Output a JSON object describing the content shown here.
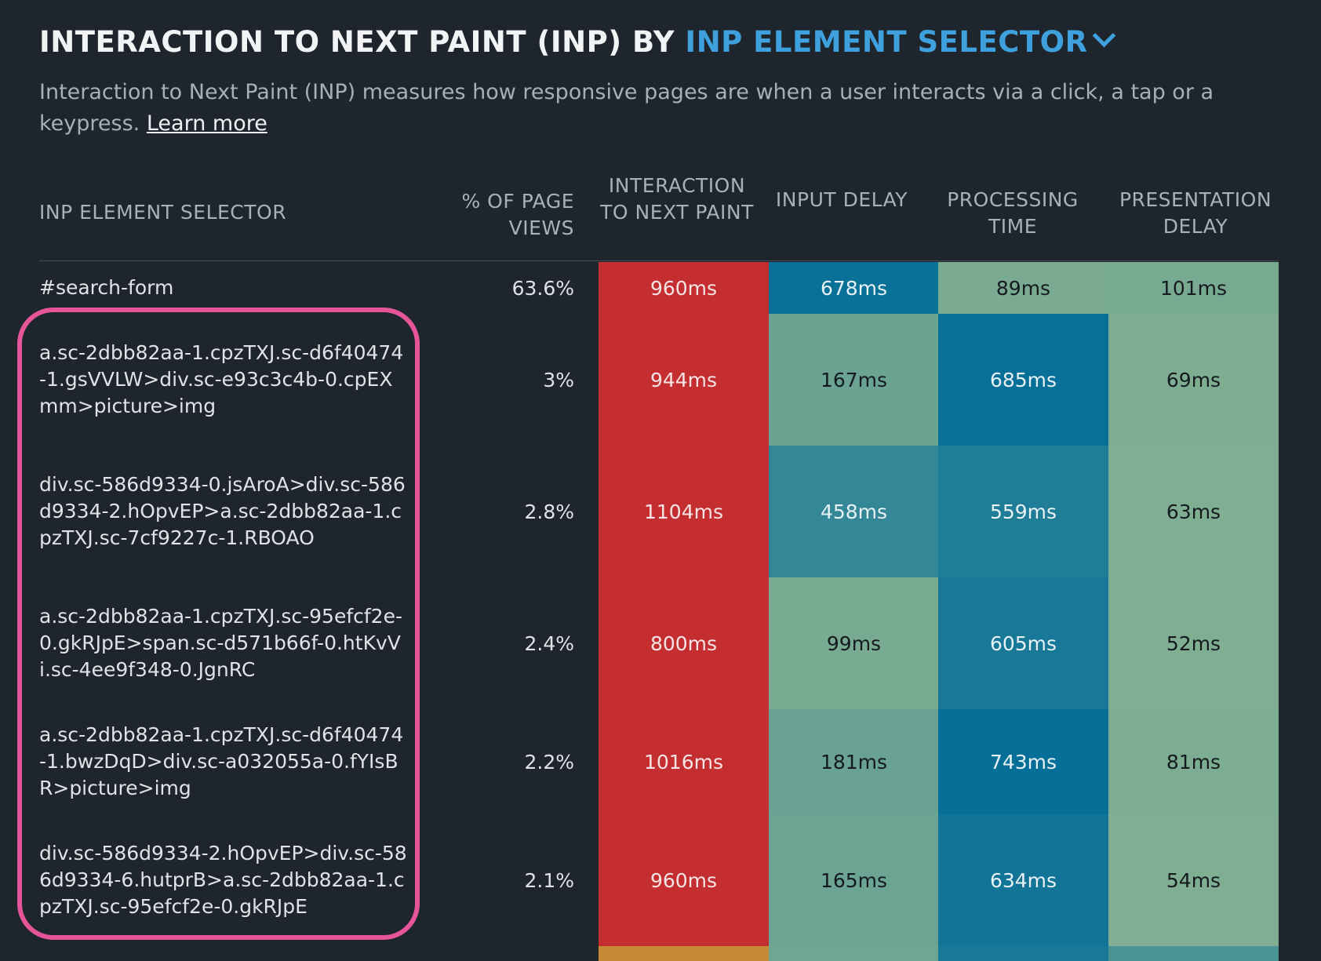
{
  "title": {
    "prefix": "INTERACTION TO NEXT PAINT (INP) BY",
    "selector": "INP ELEMENT SELECTOR"
  },
  "description": {
    "text": "Interaction to Next Paint (INP) measures how responsive pages are when a user interacts via a click, a tap or a keypress.",
    "link": "Learn more"
  },
  "columns": {
    "selector": "INP ELEMENT SELECTOR",
    "page_views": "% OF PAGE VIEWS",
    "inp": "INTERACTION TO NEXT PAINT",
    "input_delay": "INPUT DELAY",
    "processing_time": "PROCESSING TIME",
    "presentation_delay": "PRESENTATION DELAY"
  },
  "rows": [
    {
      "selector": "#search-form",
      "page_views": "63.6%",
      "inp": "960ms",
      "input_delay": "678ms",
      "processing_time": "89ms",
      "presentation_delay": "101ms"
    },
    {
      "selector": "a.sc-2dbb82aa-1.cpzTXJ.sc-d6f40474-1.gsVVLW>div.sc-e93c3c4b-0.cpEXmm>picture>img",
      "page_views": "3%",
      "inp": "944ms",
      "input_delay": "167ms",
      "processing_time": "685ms",
      "presentation_delay": "69ms"
    },
    {
      "selector": "div.sc-586d9334-0.jsAroA>div.sc-586d9334-2.hOpvEP>a.sc-2dbb82aa-1.cpzTXJ.sc-7cf9227c-1.RBOAO",
      "page_views": "2.8%",
      "inp": "1104ms",
      "input_delay": "458ms",
      "processing_time": "559ms",
      "presentation_delay": "63ms"
    },
    {
      "selector": "a.sc-2dbb82aa-1.cpzTXJ.sc-95efcf2e-0.gkRJpE>span.sc-d571b66f-0.htKvVi.sc-4ee9f348-0.JgnRC",
      "page_views": "2.4%",
      "inp": "800ms",
      "input_delay": "99ms",
      "processing_time": "605ms",
      "presentation_delay": "52ms"
    },
    {
      "selector": "a.sc-2dbb82aa-1.cpzTXJ.sc-d6f40474-1.bwzDqD>div.sc-a032055a-0.fYIsBR>picture>img",
      "page_views": "2.2%",
      "inp": "1016ms",
      "input_delay": "181ms",
      "processing_time": "743ms",
      "presentation_delay": "81ms"
    },
    {
      "selector": "div.sc-586d9334-2.hOpvEP>div.sc-586d9334-6.hutprB>a.sc-2dbb82aa-1.cpzTXJ.sc-95efcf2e-0.gkRJpE",
      "page_views": "2.1%",
      "inp": "960ms",
      "input_delay": "165ms",
      "processing_time": "634ms",
      "presentation_delay": "54ms"
    }
  ],
  "colors": {
    "background": "#1f252c",
    "accent": "#3ea0dc",
    "inp_poor": "#c42e31",
    "inp_next_row": "#c48a35",
    "highlight_outline": "#e6549a"
  }
}
